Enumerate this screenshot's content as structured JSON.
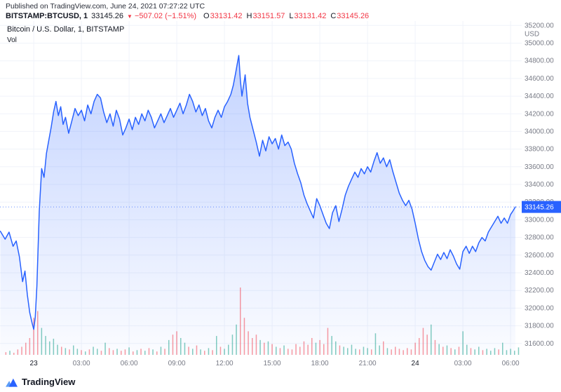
{
  "header": {
    "published_line": "Published on TradingView.com, June 24, 2021 07:27:22 UTC",
    "symbol": "BITSTAMP:BTCUSD, 1",
    "last_price": "33145.26",
    "down_arrow": "▼",
    "change": "−507.02 (−1.51%)",
    "ohlc": [
      {
        "label": "O",
        "value": "33131.42"
      },
      {
        "label": "H",
        "value": "33151.57"
      },
      {
        "label": "L",
        "value": "33131.42"
      },
      {
        "label": "C",
        "value": "33145.26"
      }
    ]
  },
  "legend": {
    "title": "Bitcoin / U.S. Dollar, 1, BITSTAMP",
    "vol": "Vol"
  },
  "footer": {
    "brand": "TradingView"
  },
  "colors": {
    "accent": "#2962ff",
    "up": "#089981",
    "down": "#f23645",
    "grid": "#f0f3fa",
    "axis_text": "#787b86",
    "text": "#131722",
    "area_top": "rgba(41,98,255,0.28)",
    "area_bottom": "rgba(41,98,255,0.02)"
  },
  "chart_data": {
    "type": "area",
    "title": "Bitcoin / U.S. Dollar, 1, BITSTAMP",
    "x_axis": "time UTC, hours from 2021-06-23 00:00",
    "y_unit": "USD",
    "xlim": [
      -2.12,
      30.7
    ],
    "ylim": [
      31471,
      35250
    ],
    "yticks": [
      "35200.00",
      "35000.00",
      "34800.00",
      "34600.00",
      "34400.00",
      "34200.00",
      "34000.00",
      "33800.00",
      "33600.00",
      "33400.00",
      "33200.00",
      "33000.00",
      "32800.00",
      "32600.00",
      "32400.00",
      "32200.00",
      "32000.00",
      "31800.00",
      "31600.00"
    ],
    "xticks": [
      {
        "t": 0,
        "label": "23",
        "day": true
      },
      {
        "t": 3,
        "label": "03:00",
        "day": false
      },
      {
        "t": 6,
        "label": "06:00",
        "day": false
      },
      {
        "t": 9,
        "label": "09:00",
        "day": false
      },
      {
        "t": 12,
        "label": "12:00",
        "day": false
      },
      {
        "t": 15,
        "label": "15:00",
        "day": false
      },
      {
        "t": 18,
        "label": "18:00",
        "day": false
      },
      {
        "t": 21,
        "label": "21:00",
        "day": false
      },
      {
        "t": 24,
        "label": "24",
        "day": true
      },
      {
        "t": 27,
        "label": "03:00",
        "day": false
      },
      {
        "t": 30,
        "label": "06:00",
        "day": false
      }
    ],
    "current_price": 33145.26,
    "current_price_label": "33145.26",
    "price_points": [
      [
        -2.1,
        32870
      ],
      [
        -1.8,
        32780
      ],
      [
        -1.55,
        32860
      ],
      [
        -1.3,
        32700
      ],
      [
        -1.1,
        32760
      ],
      [
        -0.9,
        32580
      ],
      [
        -0.7,
        32300
      ],
      [
        -0.55,
        32420
      ],
      [
        -0.4,
        32150
      ],
      [
        -0.25,
        31950
      ],
      [
        -0.1,
        31830
      ],
      [
        0,
        31760
      ],
      [
        0.1,
        31900
      ],
      [
        0.2,
        32250
      ],
      [
        0.35,
        33100
      ],
      [
        0.5,
        33580
      ],
      [
        0.65,
        33480
      ],
      [
        0.8,
        33750
      ],
      [
        0.95,
        33900
      ],
      [
        1.1,
        34050
      ],
      [
        1.25,
        34220
      ],
      [
        1.4,
        34340
      ],
      [
        1.55,
        34180
      ],
      [
        1.7,
        34280
      ],
      [
        1.85,
        34080
      ],
      [
        2,
        34160
      ],
      [
        2.2,
        33980
      ],
      [
        2.4,
        34120
      ],
      [
        2.6,
        34260
      ],
      [
        2.8,
        34180
      ],
      [
        3,
        34240
      ],
      [
        3.2,
        34120
      ],
      [
        3.4,
        34300
      ],
      [
        3.6,
        34200
      ],
      [
        3.8,
        34340
      ],
      [
        4,
        34420
      ],
      [
        4.2,
        34380
      ],
      [
        4.4,
        34220
      ],
      [
        4.6,
        34100
      ],
      [
        4.8,
        34200
      ],
      [
        5,
        34060
      ],
      [
        5.2,
        34240
      ],
      [
        5.4,
        34140
      ],
      [
        5.6,
        33960
      ],
      [
        5.8,
        34040
      ],
      [
        6,
        34140
      ],
      [
        6.2,
        34020
      ],
      [
        6.4,
        34160
      ],
      [
        6.6,
        34080
      ],
      [
        6.8,
        34200
      ],
      [
        7,
        34120
      ],
      [
        7.2,
        34240
      ],
      [
        7.4,
        34160
      ],
      [
        7.6,
        34040
      ],
      [
        7.8,
        34120
      ],
      [
        8,
        34200
      ],
      [
        8.2,
        34100
      ],
      [
        8.4,
        34180
      ],
      [
        8.6,
        34260
      ],
      [
        8.8,
        34160
      ],
      [
        9,
        34240
      ],
      [
        9.2,
        34320
      ],
      [
        9.4,
        34200
      ],
      [
        9.6,
        34300
      ],
      [
        9.8,
        34420
      ],
      [
        10,
        34340
      ],
      [
        10.2,
        34220
      ],
      [
        10.4,
        34300
      ],
      [
        10.6,
        34180
      ],
      [
        10.8,
        34260
      ],
      [
        11,
        34120
      ],
      [
        11.2,
        34040
      ],
      [
        11.4,
        34160
      ],
      [
        11.6,
        34240
      ],
      [
        11.8,
        34160
      ],
      [
        12,
        34280
      ],
      [
        12.2,
        34340
      ],
      [
        12.4,
        34420
      ],
      [
        12.55,
        34520
      ],
      [
        12.7,
        34660
      ],
      [
        12.8,
        34760
      ],
      [
        12.9,
        34860
      ],
      [
        13,
        34580
      ],
      [
        13.1,
        34400
      ],
      [
        13.2,
        34520
      ],
      [
        13.3,
        34640
      ],
      [
        13.45,
        34320
      ],
      [
        13.6,
        34160
      ],
      [
        13.8,
        34020
      ],
      [
        14,
        33880
      ],
      [
        14.2,
        33720
      ],
      [
        14.4,
        33900
      ],
      [
        14.6,
        33780
      ],
      [
        14.8,
        33940
      ],
      [
        15,
        33860
      ],
      [
        15.2,
        33920
      ],
      [
        15.4,
        33800
      ],
      [
        15.6,
        33960
      ],
      [
        15.8,
        33840
      ],
      [
        16,
        33880
      ],
      [
        16.2,
        33800
      ],
      [
        16.4,
        33640
      ],
      [
        16.6,
        33520
      ],
      [
        16.8,
        33420
      ],
      [
        17,
        33280
      ],
      [
        17.2,
        33180
      ],
      [
        17.4,
        33100
      ],
      [
        17.6,
        33020
      ],
      [
        17.8,
        33240
      ],
      [
        18,
        33160
      ],
      [
        18.2,
        33060
      ],
      [
        18.4,
        32960
      ],
      [
        18.6,
        32900
      ],
      [
        18.8,
        33080
      ],
      [
        19,
        33160
      ],
      [
        19.2,
        32980
      ],
      [
        19.4,
        33120
      ],
      [
        19.6,
        33280
      ],
      [
        19.8,
        33380
      ],
      [
        20,
        33460
      ],
      [
        20.2,
        33540
      ],
      [
        20.4,
        33480
      ],
      [
        20.6,
        33580
      ],
      [
        20.8,
        33520
      ],
      [
        21,
        33600
      ],
      [
        21.2,
        33540
      ],
      [
        21.4,
        33660
      ],
      [
        21.6,
        33760
      ],
      [
        21.8,
        33640
      ],
      [
        22,
        33700
      ],
      [
        22.2,
        33600
      ],
      [
        22.4,
        33680
      ],
      [
        22.6,
        33540
      ],
      [
        22.8,
        33420
      ],
      [
        23,
        33300
      ],
      [
        23.2,
        33220
      ],
      [
        23.4,
        33160
      ],
      [
        23.6,
        33220
      ],
      [
        23.8,
        33120
      ],
      [
        24,
        32960
      ],
      [
        24.2,
        32780
      ],
      [
        24.4,
        32640
      ],
      [
        24.6,
        32540
      ],
      [
        24.8,
        32470
      ],
      [
        25,
        32430
      ],
      [
        25.2,
        32520
      ],
      [
        25.4,
        32610
      ],
      [
        25.6,
        32550
      ],
      [
        25.8,
        32630
      ],
      [
        26,
        32560
      ],
      [
        26.2,
        32660
      ],
      [
        26.4,
        32590
      ],
      [
        26.6,
        32500
      ],
      [
        26.8,
        32440
      ],
      [
        27,
        32640
      ],
      [
        27.2,
        32700
      ],
      [
        27.4,
        32620
      ],
      [
        27.6,
        32700
      ],
      [
        27.8,
        32640
      ],
      [
        28,
        32740
      ],
      [
        28.2,
        32800
      ],
      [
        28.4,
        32760
      ],
      [
        28.6,
        32860
      ],
      [
        28.8,
        32920
      ],
      [
        29,
        32980
      ],
      [
        29.2,
        33040
      ],
      [
        29.4,
        32960
      ],
      [
        29.6,
        33020
      ],
      [
        29.8,
        32960
      ],
      [
        30,
        33060
      ],
      [
        30.15,
        33100
      ],
      [
        30.3,
        33145.26
      ]
    ],
    "volume": {
      "start": -1.75,
      "step": 0.25,
      "scale_max": 100,
      "values": [
        4,
        6,
        3,
        8,
        12,
        18,
        25,
        55,
        65,
        40,
        28,
        20,
        24,
        15,
        12,
        10,
        8,
        14,
        9,
        7,
        5,
        8,
        12,
        9,
        6,
        18,
        10,
        7,
        9,
        6,
        8,
        11,
        5,
        7,
        9,
        6,
        10,
        8,
        5,
        12,
        9,
        22,
        30,
        35,
        25,
        18,
        12,
        9,
        14,
        8,
        6,
        10,
        7,
        28,
        12,
        9,
        15,
        30,
        45,
        100,
        55,
        35,
        25,
        30,
        22,
        18,
        20,
        16,
        12,
        10,
        14,
        9,
        8,
        16,
        12,
        20,
        15,
        25,
        18,
        22,
        16,
        40,
        28,
        20,
        14,
        12,
        10,
        15,
        9,
        8,
        12,
        10,
        8,
        32,
        14,
        20,
        10,
        8,
        12,
        9,
        7,
        10,
        8,
        18,
        25,
        40,
        30,
        45,
        22,
        16,
        12,
        14,
        10,
        8,
        12,
        35,
        15,
        10,
        8,
        12,
        7,
        9,
        6,
        10,
        8,
        18,
        7,
        9,
        6,
        11
      ],
      "dirs": "rgrrrrrrrgggggrgrggrgrggrgrrgrrgrgrgrgrgrgrrggrgrgrgrgrggggrrrrrgrgrgrgrrrrrrrgrrrggrggggrggrggrgrrrrrrrrrrgrgrgrgrggrggrgggrggggg"
    }
  }
}
